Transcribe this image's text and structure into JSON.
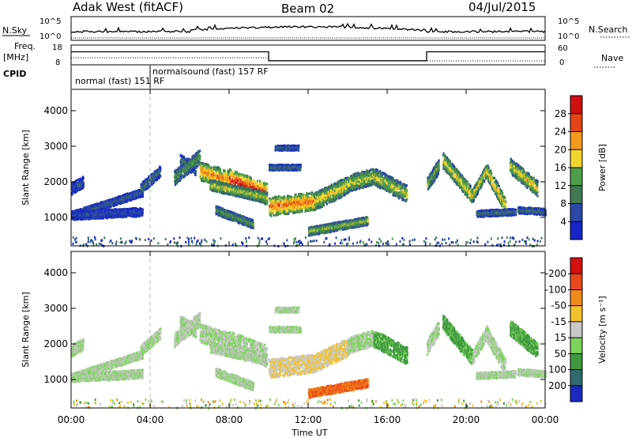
{
  "header": {
    "title_left": "Adak West (fitACF)",
    "title_center": "Beam 02",
    "title_right": "04/Jul/2015"
  },
  "status_strip": {
    "nsky_label": "N.Sky",
    "nsearch_label": "N.Search",
    "noise_ticks": [
      "10^5",
      "10^0"
    ],
    "freq_label_1": "Freq.",
    "freq_label_2": "[MHz]",
    "freq_ticks": [
      "18",
      "8"
    ],
    "nave_label": "Nave",
    "nave_ticks": [
      "60",
      "0"
    ],
    "cpid_label": "CPID",
    "cpid_segment_1": "normal (fast)  151 RF",
    "cpid_segment_2": "normalsound (fast)  157 RF",
    "freq_steps": [
      {
        "t0": 0,
        "t1": 10,
        "level": 0.5
      },
      {
        "t0": 10,
        "t1": 18,
        "level": 0.05
      },
      {
        "t0": 18,
        "t1": 24,
        "level": 0.5
      }
    ]
  },
  "chart_data": [
    {
      "type": "heatmap",
      "name": "power",
      "ylabel": "Slant Range [km]",
      "y_ticks": [
        1000,
        2000,
        3000,
        4000
      ],
      "ylim": [
        200,
        4600
      ],
      "xlim": [
        0,
        24
      ],
      "colorbar": {
        "label": "Power [dB]",
        "ticks": [
          "4",
          "8",
          "12",
          "16",
          "20",
          "24",
          "28"
        ],
        "colors": [
          "#1525c8",
          "#2b48a8",
          "#3f7a52",
          "#4e9e4a",
          "#f2d62c",
          "#f39a1c",
          "#e44417",
          "#cf1010"
        ]
      }
    },
    {
      "type": "heatmap",
      "name": "velocity",
      "ylabel": "Slant Range [km]",
      "y_ticks": [
        1000,
        2000,
        3000,
        4000
      ],
      "ylim": [
        200,
        4600
      ],
      "xlim": [
        0,
        24
      ],
      "xlabel": "Time UT",
      "x_ticks": [
        "00:00",
        "04:00",
        "08:00",
        "12:00",
        "16:00",
        "20:00",
        "00:00"
      ],
      "colorbar": {
        "label": "Velocity [m s⁻¹]",
        "ticks": [
          "200",
          "100",
          "50",
          "15",
          "-15",
          "-50",
          "-100",
          "-200"
        ],
        "colors": [
          "#1a2ac0",
          "#2f6a70",
          "#3f9a3f",
          "#7bd35a",
          "#c8c8c8",
          "#f2c22a",
          "#f08a1a",
          "#e9481a",
          "#d21010"
        ]
      }
    }
  ],
  "features": [
    {
      "t0": 0.0,
      "r0": 1050,
      "t1": 3.6,
      "r1": 1700,
      "w": 110,
      "p": 0.25,
      "v": 0.45
    },
    {
      "t0": 0.0,
      "r0": 1050,
      "t1": 3.6,
      "r1": 1150,
      "w": 120,
      "p": 0.2,
      "v": 0.45
    },
    {
      "t0": 0.0,
      "r0": 1800,
      "t1": 0.6,
      "r1": 2000,
      "w": 160,
      "p": 0.22,
      "v": 0.45
    },
    {
      "t0": 3.5,
      "r0": 1800,
      "t1": 4.5,
      "r1": 2300,
      "w": 150,
      "p": 0.3,
      "v": 0.45
    },
    {
      "t0": 5.5,
      "r0": 2600,
      "t1": 6.3,
      "r1": 2350,
      "w": 180,
      "p": 0.35,
      "v": 0.45
    },
    {
      "t0": 5.2,
      "r0": 2100,
      "t1": 6.5,
      "r1": 2700,
      "w": 200,
      "p": 0.4,
      "v": 0.45
    },
    {
      "t0": 6.5,
      "r0": 2300,
      "t1": 8.0,
      "r1": 2050,
      "w": 260,
      "p": 0.75,
      "v": 0.45
    },
    {
      "t0": 8.0,
      "r0": 2050,
      "t1": 9.9,
      "r1": 1650,
      "w": 300,
      "p": 0.95,
      "v": 0.45
    },
    {
      "t0": 7.0,
      "r0": 1900,
      "t1": 9.9,
      "r1": 1550,
      "w": 150,
      "p": 0.55,
      "v": 0.45
    },
    {
      "t0": 10.0,
      "r0": 1300,
      "t1": 12.3,
      "r1": 1450,
      "w": 260,
      "p": 0.8,
      "v": 0.55
    },
    {
      "t0": 12.3,
      "r0": 1450,
      "t1": 14.0,
      "r1": 1900,
      "w": 250,
      "p": 0.6,
      "v": 0.55
    },
    {
      "t0": 14.0,
      "r0": 1950,
      "t1": 15.3,
      "r1": 2150,
      "w": 230,
      "p": 0.55,
      "v": 0.45
    },
    {
      "t0": 15.3,
      "r0": 2150,
      "t1": 17.0,
      "r1": 1650,
      "w": 240,
      "p": 0.55,
      "v": 0.3
    },
    {
      "t0": 12.0,
      "r0": 600,
      "t1": 15.0,
      "r1": 900,
      "w": 120,
      "p": 0.5,
      "v": 0.78
    },
    {
      "t0": 10.0,
      "r0": 2400,
      "t1": 11.6,
      "r1": 2400,
      "w": 80,
      "p": 0.3,
      "v": 0.45
    },
    {
      "t0": 10.3,
      "r0": 2950,
      "t1": 11.5,
      "r1": 2950,
      "w": 70,
      "p": 0.25,
      "v": 0.45
    },
    {
      "t0": 7.3,
      "r0": 1200,
      "t1": 9.2,
      "r1": 800,
      "w": 120,
      "p": 0.4,
      "v": 0.45
    },
    {
      "t0": 18.0,
      "r0": 1900,
      "t1": 18.6,
      "r1": 2450,
      "w": 200,
      "p": 0.45,
      "v": 0.45
    },
    {
      "t0": 18.8,
      "r0": 2600,
      "t1": 20.3,
      "r1": 1600,
      "w": 220,
      "p": 0.6,
      "v": 0.3
    },
    {
      "t0": 20.3,
      "r0": 1600,
      "t1": 21.0,
      "r1": 2300,
      "w": 180,
      "p": 0.6,
      "v": 0.45
    },
    {
      "t0": 21.0,
      "r0": 2300,
      "t1": 22.0,
      "r1": 1300,
      "w": 220,
      "p": 0.65,
      "v": 0.45
    },
    {
      "t0": 22.2,
      "r0": 2450,
      "t1": 23.6,
      "r1": 1800,
      "w": 220,
      "p": 0.6,
      "v": 0.3
    },
    {
      "t0": 20.5,
      "r0": 1100,
      "t1": 22.5,
      "r1": 1150,
      "w": 90,
      "p": 0.3,
      "v": 0.45
    },
    {
      "t0": 22.6,
      "r0": 1200,
      "t1": 24.0,
      "r1": 1150,
      "w": 90,
      "p": 0.3,
      "v": 0.45
    }
  ]
}
